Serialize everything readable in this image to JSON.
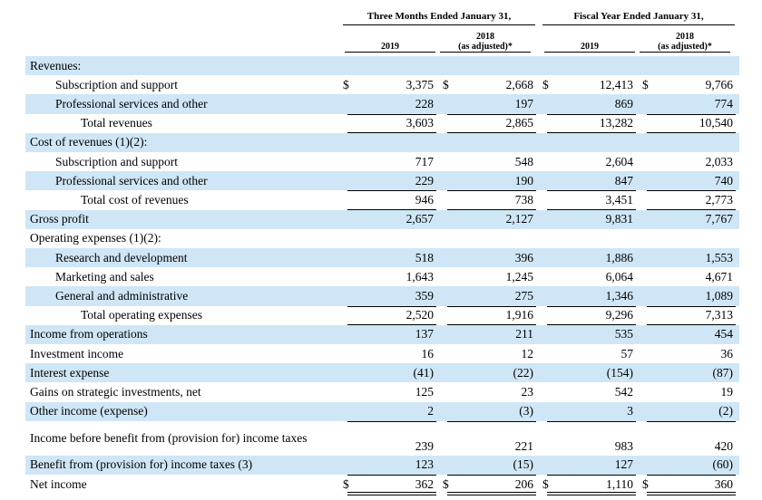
{
  "header": {
    "groups": [
      "Three Months Ended January 31,",
      "Fiscal Year Ended January 31,"
    ],
    "columns": [
      {
        "year": "2019"
      },
      {
        "year": "2018",
        "note": "(as adjusted)*"
      },
      {
        "year": "2019"
      },
      {
        "year": "2018",
        "note": "(as adjusted)*"
      }
    ]
  },
  "rows": [
    {
      "label": "Revenues:",
      "indent": 0
    },
    {
      "label": "Subscription and support",
      "indent": 1,
      "currency": "$",
      "values": [
        "3,375",
        "2,668",
        "12,413",
        "9,766"
      ]
    },
    {
      "label": "Professional services and other",
      "indent": 1,
      "values": [
        "228",
        "197",
        "869",
        "774"
      ]
    },
    {
      "label": "Total revenues",
      "indent": 2,
      "values": [
        "3,603",
        "2,865",
        "13,282",
        "10,540"
      ]
    },
    {
      "label": "Cost of revenues (1)(2):",
      "indent": 0
    },
    {
      "label": "Subscription and support",
      "indent": 1,
      "values": [
        "717",
        "548",
        "2,604",
        "2,033"
      ]
    },
    {
      "label": "Professional services and other",
      "indent": 1,
      "values": [
        "229",
        "190",
        "847",
        "740"
      ]
    },
    {
      "label": "Total cost of revenues",
      "indent": 2,
      "values": [
        "946",
        "738",
        "3,451",
        "2,773"
      ]
    },
    {
      "label": "Gross profit",
      "indent": 0,
      "values": [
        "2,657",
        "2,127",
        "9,831",
        "7,767"
      ]
    },
    {
      "label": "Operating expenses (1)(2):",
      "indent": 0
    },
    {
      "label": "Research and development",
      "indent": 1,
      "values": [
        "518",
        "396",
        "1,886",
        "1,553"
      ]
    },
    {
      "label": "Marketing and sales",
      "indent": 1,
      "values": [
        "1,643",
        "1,245",
        "6,064",
        "4,671"
      ]
    },
    {
      "label": "General and administrative",
      "indent": 1,
      "values": [
        "359",
        "275",
        "1,346",
        "1,089"
      ]
    },
    {
      "label": "Total operating expenses",
      "indent": 2,
      "values": [
        "2,520",
        "1,916",
        "9,296",
        "7,313"
      ]
    },
    {
      "label": "Income from operations",
      "indent": 0,
      "values": [
        "137",
        "211",
        "535",
        "454"
      ]
    },
    {
      "label": "Investment income",
      "indent": 0,
      "values": [
        "16",
        "12",
        "57",
        "36"
      ]
    },
    {
      "label": "Interest expense",
      "indent": 0,
      "values": [
        "(41)",
        "(22)",
        "(154)",
        "(87)"
      ]
    },
    {
      "label": "Gains on strategic investments, net",
      "indent": 0,
      "values": [
        "125",
        "23",
        "542",
        "19"
      ]
    },
    {
      "label": "Other income (expense)",
      "indent": 0,
      "values": [
        "2",
        "(3)",
        "3",
        "(2)"
      ]
    },
    {
      "label": "Income before benefit from (provision for) income taxes",
      "indent": 0,
      "values": [
        "239",
        "221",
        "983",
        "420"
      ]
    },
    {
      "label": "Benefit from (provision for) income taxes (3)",
      "indent": 0,
      "values": [
        "123",
        "(15)",
        "127",
        "(60)"
      ]
    },
    {
      "label": "Net income",
      "indent": 0,
      "currency": "$",
      "values": [
        "362",
        "206",
        "1,110",
        "360"
      ]
    }
  ]
}
